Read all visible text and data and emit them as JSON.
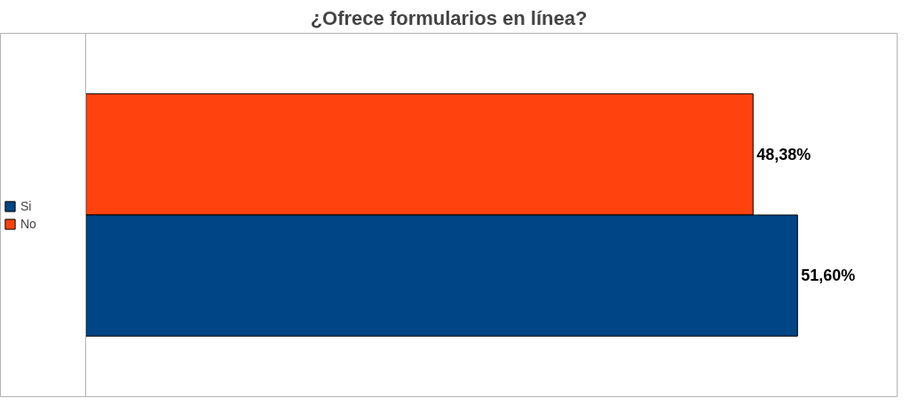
{
  "chart_data": {
    "type": "bar",
    "orientation": "horizontal",
    "title": "¿Ofrece formularios en línea?",
    "categories": [
      null
    ],
    "series": [
      {
        "name": "No",
        "color": "#ff420e",
        "values": [
          48.38
        ],
        "value_labels": [
          "48,38%"
        ]
      },
      {
        "name": "Si",
        "color": "#004586",
        "values": [
          51.6
        ],
        "value_labels": [
          "51,60%"
        ]
      }
    ],
    "legend": "left",
    "grid": false
  }
}
